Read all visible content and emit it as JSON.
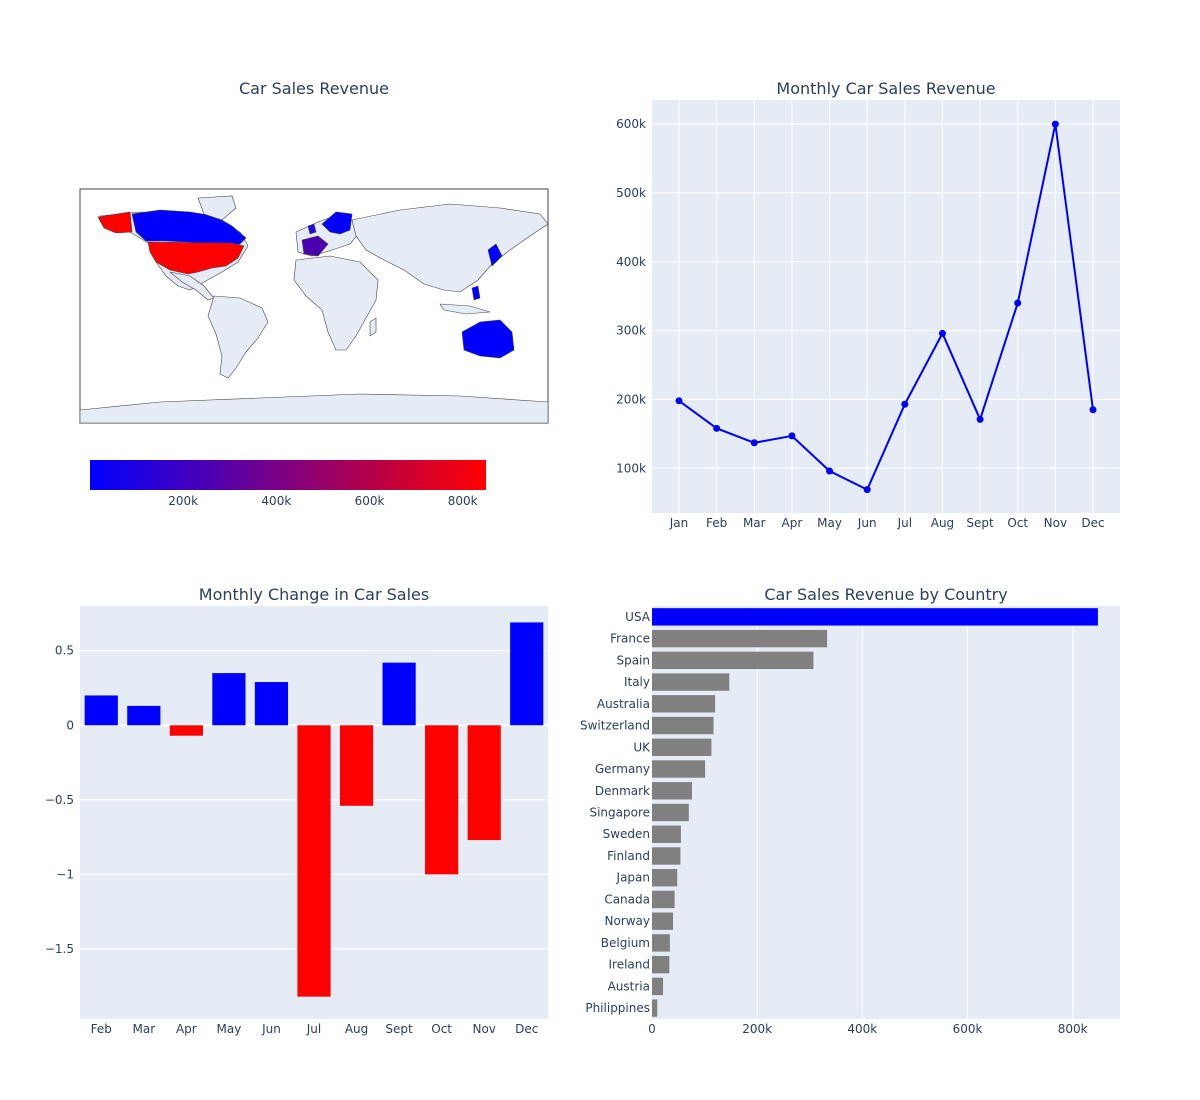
{
  "colors": {
    "plot_bg": "#E5ECF6",
    "grid": "#ffffff",
    "blue": "#0000ff",
    "red": "#ff0000",
    "gray": "#808080",
    "land": "#E5ECF6",
    "coast": "#444444"
  },
  "chart_data": [
    {
      "id": "map",
      "type": "choropleth",
      "title": "Car Sales Revenue",
      "colorscale": [
        "#0000ff",
        "#ff0000"
      ],
      "colorbar_range": [
        0,
        850000
      ],
      "colorbar_ticks": [
        {
          "value": 200000,
          "label": "200k"
        },
        {
          "value": 400000,
          "label": "400k"
        },
        {
          "value": 600000,
          "label": "600k"
        },
        {
          "value": 800000,
          "label": "800k"
        }
      ],
      "regions": [
        {
          "name": "USA",
          "value": 848000
        },
        {
          "name": "Canada",
          "value": 43000
        },
        {
          "name": "Australia",
          "value": 120000
        },
        {
          "name": "Japan",
          "value": 48000
        },
        {
          "name": "France",
          "value": 333000
        },
        {
          "name": "Spain",
          "value": 307000
        },
        {
          "name": "Italy",
          "value": 147000
        },
        {
          "name": "UK",
          "value": 113000
        },
        {
          "name": "Norway",
          "value": 40000
        },
        {
          "name": "Sweden",
          "value": 55000
        },
        {
          "name": "Finland",
          "value": 54000
        },
        {
          "name": "Philippines",
          "value": 10000
        }
      ]
    },
    {
      "id": "line",
      "type": "line",
      "title": "Monthly Car Sales Revenue",
      "x": [
        "Jan",
        "Feb",
        "Mar",
        "Apr",
        "May",
        "Jun",
        "Jul",
        "Aug",
        "Sept",
        "Oct",
        "Nov",
        "Dec"
      ],
      "y": [
        198000,
        158000,
        137000,
        147000,
        96000,
        69000,
        193000,
        296000,
        171000,
        340000,
        600000,
        185000
      ],
      "ylim": [
        35000,
        635000
      ],
      "yticks": [
        {
          "value": 100000,
          "label": "100k"
        },
        {
          "value": 200000,
          "label": "200k"
        },
        {
          "value": 300000,
          "label": "300k"
        },
        {
          "value": 400000,
          "label": "400k"
        },
        {
          "value": 500000,
          "label": "500k"
        },
        {
          "value": 600000,
          "label": "600k"
        }
      ],
      "color": "#0000ff"
    },
    {
      "id": "change",
      "type": "bar",
      "title": "Monthly Change in Car Sales",
      "categories": [
        "Feb",
        "Mar",
        "Apr",
        "May",
        "Jun",
        "Jul",
        "Aug",
        "Sept",
        "Oct",
        "Nov",
        "Dec"
      ],
      "values": [
        0.2,
        0.13,
        -0.07,
        0.35,
        0.29,
        -1.82,
        -0.54,
        0.42,
        -1.0,
        -0.77,
        0.69
      ],
      "ylim": [
        -1.97,
        0.8
      ],
      "yticks": [
        {
          "value": 0.5,
          "label": "0.5"
        },
        {
          "value": 0,
          "label": "0"
        },
        {
          "value": -0.5,
          "label": "−0.5"
        },
        {
          "value": -1,
          "label": "−1"
        },
        {
          "value": -1.5,
          "label": "−1.5"
        }
      ],
      "positive_color": "#0000ff",
      "negative_color": "#ff0000"
    },
    {
      "id": "country",
      "type": "bar",
      "orientation": "horizontal",
      "title": "Car Sales Revenue by Country",
      "categories": [
        "USA",
        "France",
        "Spain",
        "Italy",
        "Australia",
        "Switzerland",
        "UK",
        "Germany",
        "Denmark",
        "Singapore",
        "Sweden",
        "Finland",
        "Japan",
        "Canada",
        "Norway",
        "Belgium",
        "Ireland",
        "Austria",
        "Philippines"
      ],
      "values": [
        848000,
        333000,
        307000,
        147000,
        120000,
        117000,
        113000,
        101000,
        76000,
        70000,
        55000,
        54000,
        48000,
        43000,
        40000,
        34000,
        33000,
        21000,
        10000
      ],
      "xlim": [
        0,
        890000
      ],
      "xticks": [
        {
          "value": 0,
          "label": "0"
        },
        {
          "value": 200000,
          "label": "200k"
        },
        {
          "value": 400000,
          "label": "400k"
        },
        {
          "value": 600000,
          "label": "600k"
        },
        {
          "value": 800000,
          "label": "800k"
        }
      ],
      "highlight": "USA",
      "highlight_color": "#0000ff",
      "color": "#808080"
    }
  ]
}
